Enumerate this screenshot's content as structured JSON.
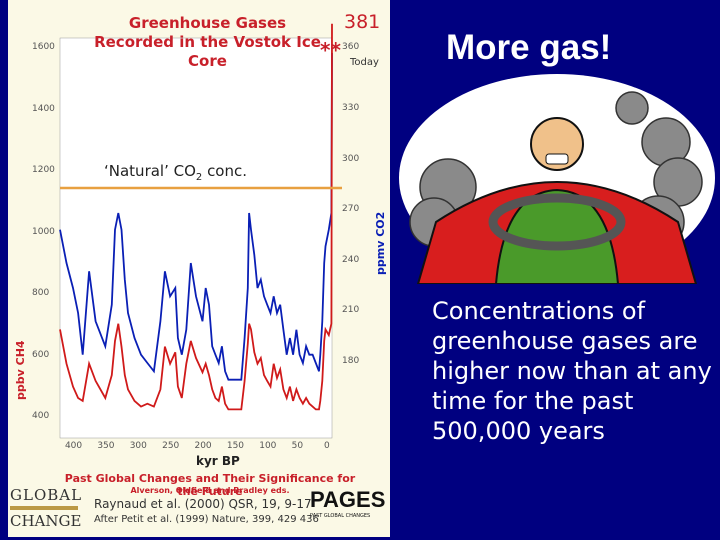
{
  "figure": {
    "title": "Greenhouse Gases Recorded in the Vostok Ice Core",
    "current_value": "381",
    "stars": "**",
    "top_right_tick": "360",
    "today_label": "Today",
    "natural_label": "‘Natural’ CO",
    "natural_sub": "2",
    "natural_suffix": " conc.",
    "left_ticks": [
      "1600",
      "1400",
      "1200",
      "1000",
      "800",
      "600",
      "400"
    ],
    "right_ticks": [
      "330",
      "300",
      "270",
      "240",
      "210",
      "180"
    ],
    "x_ticks": [
      "400",
      "350",
      "300",
      "250",
      "200",
      "150",
      "100",
      "50",
      "0"
    ],
    "ylabel_ch4": "ppbv CH4",
    "ylabel_co2": "ppmv CO2",
    "xlabel": "kyr BP",
    "footer_line1": "Past Global Changes and Their Significance for the Future",
    "footer_line2": "Alverson, Oldfield and Bradley eds.",
    "citation1": "Raynaud et al. (2000) QSR, 19, 9-17",
    "citation2": "After Petit et al. (1999) Nature, 399, 429 436",
    "logo_global_top": "GLOBAL",
    "logo_global_bottom": "CHANGE",
    "logo_pages": "PAGES",
    "logo_pages_sub": "PAST GLOBAL CHANGES"
  },
  "colors": {
    "co2": "#0a1fb5",
    "ch4": "#d01a1a",
    "natural_line": "#e8a040",
    "background": "#000080"
  },
  "headline": "More gas!",
  "body_text": "Concentrations of greenhouse gases are higher now than at any time for the past 500,000 years",
  "chart_data": {
    "type": "line",
    "title": "Greenhouse Gases Recorded in the Vostok Ice Core",
    "xlabel": "kyr BP",
    "xlim": [
      420,
      0
    ],
    "series": [
      {
        "name": "ppmv CO2",
        "axis": "right",
        "ylim": [
          150,
          390
        ],
        "x": [
          420,
          410,
          400,
          392,
          385,
          375,
          365,
          350,
          340,
          335,
          330,
          325,
          320,
          315,
          305,
          295,
          285,
          275,
          265,
          258,
          250,
          242,
          238,
          232,
          225,
          218,
          210,
          200,
          195,
          190,
          185,
          180,
          175,
          170,
          165,
          160,
          150,
          140,
          135,
          130,
          128,
          125,
          120,
          115,
          110,
          105,
          100,
          95,
          90,
          85,
          80,
          75,
          70,
          65,
          60,
          55,
          50,
          45,
          40,
          35,
          30,
          25,
          20,
          18,
          15,
          12,
          10,
          5,
          1,
          0
        ],
        "y": [
          275,
          255,
          240,
          225,
          200,
          250,
          220,
          205,
          230,
          275,
          285,
          275,
          245,
          225,
          210,
          200,
          195,
          190,
          220,
          250,
          235,
          240,
          210,
          200,
          215,
          255,
          235,
          220,
          240,
          230,
          205,
          200,
          195,
          205,
          190,
          185,
          185,
          185,
          210,
          240,
          285,
          275,
          260,
          240,
          245,
          235,
          230,
          225,
          235,
          225,
          230,
          215,
          200,
          210,
          200,
          215,
          200,
          195,
          205,
          200,
          200,
          195,
          190,
          200,
          220,
          255,
          265,
          275,
          285,
          381
        ]
      },
      {
        "name": "ppbv CH4",
        "axis": "left",
        "ylim": [
          300,
          1700
        ],
        "x": [
          420,
          410,
          400,
          392,
          385,
          375,
          365,
          350,
          340,
          335,
          330,
          325,
          320,
          315,
          305,
          295,
          285,
          275,
          265,
          258,
          250,
          242,
          238,
          232,
          225,
          218,
          210,
          200,
          195,
          190,
          185,
          180,
          175,
          170,
          165,
          160,
          150,
          140,
          135,
          130,
          128,
          125,
          120,
          115,
          110,
          105,
          100,
          95,
          90,
          85,
          80,
          75,
          70,
          65,
          60,
          55,
          50,
          45,
          40,
          35,
          30,
          25,
          20,
          18,
          15,
          12,
          10,
          5,
          1,
          0
        ],
        "y": [
          680,
          560,
          480,
          440,
          430,
          560,
          500,
          440,
          520,
          640,
          700,
          620,
          520,
          470,
          430,
          410,
          420,
          410,
          470,
          620,
          560,
          600,
          480,
          440,
          560,
          640,
          580,
          530,
          560,
          520,
          470,
          440,
          430,
          480,
          420,
          400,
          400,
          400,
          500,
          630,
          700,
          680,
          600,
          560,
          580,
          520,
          500,
          480,
          560,
          510,
          540,
          470,
          440,
          480,
          430,
          470,
          440,
          420,
          440,
          420,
          410,
          400,
          400,
          430,
          500,
          640,
          680,
          660,
          700,
          1750
        ]
      }
    ],
    "annotations": [
      "‘Natural’ CO2 conc.",
      "381",
      "**",
      "Today"
    ]
  }
}
